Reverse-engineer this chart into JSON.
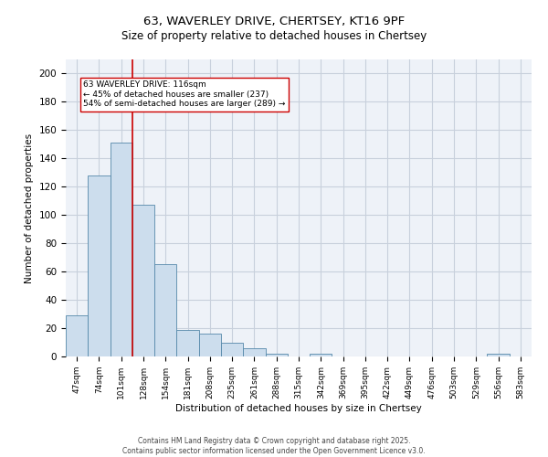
{
  "title1": "63, WAVERLEY DRIVE, CHERTSEY, KT16 9PF",
  "title2": "Size of property relative to detached houses in Chertsey",
  "xlabel": "Distribution of detached houses by size in Chertsey",
  "ylabel": "Number of detached properties",
  "categories": [
    "47sqm",
    "74sqm",
    "101sqm",
    "128sqm",
    "154sqm",
    "181sqm",
    "208sqm",
    "235sqm",
    "261sqm",
    "288sqm",
    "315sqm",
    "342sqm",
    "369sqm",
    "395sqm",
    "422sqm",
    "449sqm",
    "476sqm",
    "503sqm",
    "529sqm",
    "556sqm",
    "583sqm"
  ],
  "values": [
    29,
    128,
    151,
    107,
    65,
    19,
    16,
    10,
    6,
    2,
    0,
    2,
    0,
    0,
    0,
    0,
    0,
    0,
    0,
    2,
    0
  ],
  "bar_color": "#ccdded",
  "bar_edge_color": "#5588aa",
  "vline_x": 2.5,
  "vline_color": "#cc0000",
  "annotation_text": "63 WAVERLEY DRIVE: 116sqm\n← 45% of detached houses are smaller (237)\n54% of semi-detached houses are larger (289) →",
  "annotation_box_color": "white",
  "annotation_box_edge_color": "#cc0000",
  "ylim": [
    0,
    210
  ],
  "yticks": [
    0,
    20,
    40,
    60,
    80,
    100,
    120,
    140,
    160,
    180,
    200
  ],
  "footer1": "Contains HM Land Registry data © Crown copyright and database right 2025.",
  "footer2": "Contains public sector information licensed under the Open Government Licence v3.0.",
  "bg_color": "#eef2f8",
  "grid_color": "#c8d0dc"
}
